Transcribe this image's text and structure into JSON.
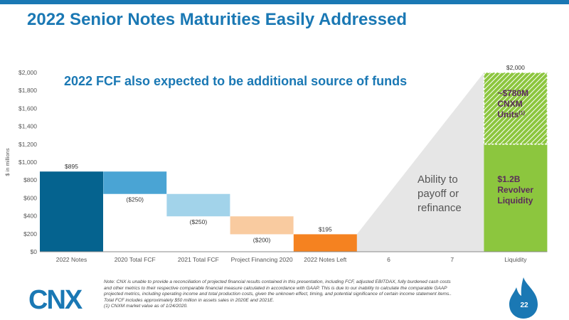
{
  "title": "2022 Senior Notes Maturities Easily Addressed",
  "logo_text": "CNX",
  "page_number": "22",
  "footnote": [
    "Note: CNX is unable to provide a reconciliation of projected financial results contained in this presentation, including FCF,  adjusted EBITDAX, fully burdened cash costs",
    "and other metrics to their respective comparable financial measure calculated in accordance with GAAP. This is due to our inability to calculate the comparable GAAP",
    "projected metrics, including operating income and total production costs, given the unknown effect, timing, and potential significance of certain income statement items..",
    "Total FCF includes approximately $50 million in assets sales in 2020E and 2021E.",
    "(1) CNXM market value as of 1/24/2020."
  ],
  "colors": {
    "brand_blue": "#1a78b4",
    "bar_2022_notes": "#05638f",
    "bar_2020_fcf": "#4aa4d4",
    "bar_2021_fcf": "#a2d3ea",
    "bar_project_financing": "#f9cba0",
    "bar_notes_left": "#f58220",
    "bar_liquidity": "#8cc63e",
    "callout_grey": "#e6e6e6"
  },
  "chart_data": {
    "type": "bar",
    "subtype": "waterfall",
    "headline": "2022 FCF also expected to be additional source of funds",
    "ylabel": "$ in millions",
    "ylim": [
      0,
      2000
    ],
    "yticks": [
      0,
      200,
      400,
      600,
      800,
      1000,
      1200,
      1400,
      1600,
      1800,
      2000
    ],
    "ytick_labels": [
      "$0",
      "$200",
      "$400",
      "$600",
      "$800",
      "$1,000",
      "$1,200",
      "$1,400",
      "$1,600",
      "$1,800",
      "$2,000"
    ],
    "categories": [
      "2022 Notes",
      "2020 Total FCF",
      "2021 Total FCF",
      "Project Financing 2020",
      "2022 Notes Left",
      "6",
      "7",
      "Liquidity"
    ],
    "bars": [
      {
        "category": "2022 Notes",
        "start": 0,
        "end": 895,
        "label": "$895",
        "label_pos": "above"
      },
      {
        "category": "2020 Total FCF",
        "start": 895,
        "end": 645,
        "label": "($250)",
        "label_pos": "below"
      },
      {
        "category": "2021 Total FCF",
        "start": 645,
        "end": 395,
        "label": "($250)",
        "label_pos": "below"
      },
      {
        "category": "Project Financing 2020",
        "start": 395,
        "end": 195,
        "label": "($200)",
        "label_pos": "below"
      },
      {
        "category": "2022 Notes Left",
        "start": 0,
        "end": 195,
        "label": "$195",
        "label_pos": "above"
      }
    ],
    "liquidity": {
      "category": "Liquidity",
      "total_label": "$2,000",
      "segments": [
        {
          "name": "$1.2B Revolver Liquidity",
          "start": 0,
          "end": 1200,
          "lines": [
            "$1.2B",
            "Revolver",
            "Liquidity"
          ]
        },
        {
          "name": "~$780M CNXM Units",
          "start": 1200,
          "end": 2000,
          "lines": [
            "~$780M",
            "CNXM",
            "Units"
          ],
          "superscript": "(1)"
        }
      ]
    },
    "annotation": [
      "Ability to",
      "payoff or",
      "refinance"
    ],
    "grid": false,
    "legend": "none"
  }
}
